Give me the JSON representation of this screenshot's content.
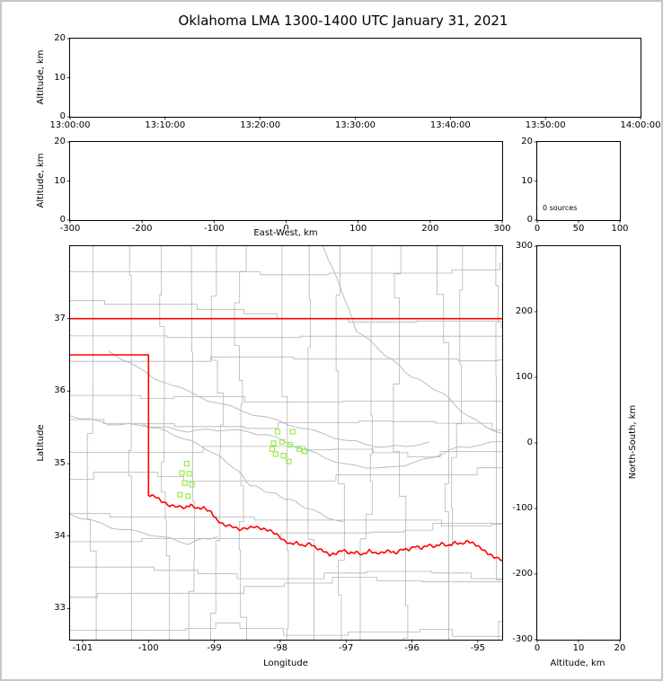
{
  "title": "Oklahoma LMA 1300-1400 UTC January 31, 2021",
  "colors": {
    "axes": "#000000",
    "figure_frame": "#c6c6c6",
    "county_lines": "#b5b5b5",
    "river_lines": "#b5b5b5",
    "state_border": "#ff0000",
    "source_marker": "#97ef4a"
  },
  "chart_data": [
    {
      "id": "time_altitude",
      "type": "scatter",
      "ylabel": "Altitude, km",
      "ylim": [
        0,
        20
      ],
      "yticks": [
        0,
        10,
        20
      ],
      "xtick_labels": [
        "13:00:00",
        "13:10:00",
        "13:20:00",
        "13:30:00",
        "13:40:00",
        "13:50:00",
        "14:00:00"
      ],
      "points": []
    },
    {
      "id": "eastwest_altitude",
      "type": "scatter",
      "xlabel": "East-West, km",
      "ylabel": "Altitude, km",
      "xlim": [
        -300,
        300
      ],
      "xticks": [
        -300,
        -200,
        -100,
        0,
        100,
        200,
        300
      ],
      "ylim": [
        0,
        20
      ],
      "yticks": [
        0,
        10,
        20
      ],
      "points": []
    },
    {
      "id": "altitude_histogram",
      "type": "bar",
      "annotation": "0 sources",
      "xlim": [
        0,
        100
      ],
      "xticks": [
        0,
        50,
        100
      ],
      "ylim": [
        0,
        20
      ],
      "yticks": [
        0,
        10,
        20
      ],
      "values": []
    },
    {
      "id": "plan_view_map",
      "type": "scatter",
      "xlabel": "Longitude",
      "ylabel": "Latitude",
      "xlim": [
        -101.19,
        -94.63
      ],
      "xticks": [
        -101,
        -100,
        -99,
        -98,
        -97,
        -96,
        -95
      ],
      "ylim": [
        32.57,
        38.0
      ],
      "yticks": [
        33,
        34,
        35,
        36,
        37
      ],
      "points": [
        [
          -98.04,
          35.44
        ],
        [
          -97.81,
          35.44
        ],
        [
          -98.1,
          35.28
        ],
        [
          -97.97,
          35.3
        ],
        [
          -97.85,
          35.26
        ],
        [
          -98.12,
          35.2
        ],
        [
          -98.07,
          35.13
        ],
        [
          -97.95,
          35.11
        ],
        [
          -97.87,
          35.03
        ],
        [
          -97.71,
          35.2
        ],
        [
          -97.63,
          35.17
        ],
        [
          -99.42,
          35.0
        ],
        [
          -99.49,
          34.87
        ],
        [
          -99.38,
          34.86
        ],
        [
          -99.45,
          34.73
        ],
        [
          -99.34,
          34.71
        ],
        [
          -99.52,
          34.57
        ],
        [
          -99.4,
          34.55
        ]
      ],
      "state_border": {
        "north_lat": 37.0,
        "panhandle_south_lat": 36.5,
        "west_lon": -100.0,
        "west_border_south_lat": 34.56
      },
      "red_river": [
        [
          -100.0,
          34.56
        ],
        [
          -99.9,
          34.55
        ],
        [
          -99.8,
          34.48
        ],
        [
          -99.68,
          34.42
        ],
        [
          -99.56,
          34.41
        ],
        [
          -99.44,
          34.39
        ],
        [
          -99.36,
          34.43
        ],
        [
          -99.26,
          34.38
        ],
        [
          -99.16,
          34.39
        ],
        [
          -99.05,
          34.33
        ],
        [
          -98.96,
          34.22
        ],
        [
          -98.85,
          34.15
        ],
        [
          -98.74,
          34.14
        ],
        [
          -98.62,
          34.09
        ],
        [
          -98.5,
          34.11
        ],
        [
          -98.39,
          34.13
        ],
        [
          -98.28,
          34.1
        ],
        [
          -98.17,
          34.08
        ],
        [
          -98.06,
          34.03
        ],
        [
          -97.95,
          33.94
        ],
        [
          -97.85,
          33.89
        ],
        [
          -97.75,
          33.91
        ],
        [
          -97.65,
          33.86
        ],
        [
          -97.55,
          33.9
        ],
        [
          -97.45,
          33.83
        ],
        [
          -97.35,
          33.8
        ],
        [
          -97.25,
          33.74
        ],
        [
          -97.15,
          33.76
        ],
        [
          -97.05,
          33.81
        ],
        [
          -96.95,
          33.76
        ],
        [
          -96.85,
          33.78
        ],
        [
          -96.75,
          33.74
        ],
        [
          -96.65,
          33.8
        ],
        [
          -96.55,
          33.76
        ],
        [
          -96.45,
          33.77
        ],
        [
          -96.35,
          33.8
        ],
        [
          -96.25,
          33.76
        ],
        [
          -96.15,
          33.82
        ],
        [
          -96.05,
          33.81
        ],
        [
          -95.95,
          33.86
        ],
        [
          -95.85,
          33.83
        ],
        [
          -95.75,
          33.88
        ],
        [
          -95.65,
          33.85
        ],
        [
          -95.55,
          33.9
        ],
        [
          -95.45,
          33.86
        ],
        [
          -95.35,
          33.91
        ],
        [
          -95.25,
          33.89
        ],
        [
          -95.15,
          33.93
        ],
        [
          -95.05,
          33.89
        ],
        [
          -94.95,
          33.83
        ],
        [
          -94.85,
          33.76
        ],
        [
          -94.75,
          33.71
        ],
        [
          -94.63,
          33.67
        ]
      ],
      "rivers": [
        [
          [
            -101.19,
            35.66
          ],
          [
            -100.6,
            35.55
          ],
          [
            -100.0,
            35.52
          ],
          [
            -99.4,
            35.45
          ],
          [
            -98.8,
            35.47
          ],
          [
            -98.2,
            35.4
          ],
          [
            -97.6,
            35.18
          ],
          [
            -97.0,
            34.98
          ],
          [
            -96.4,
            34.93
          ],
          [
            -95.8,
            35.05
          ],
          [
            -95.3,
            35.22
          ],
          [
            -94.63,
            35.3
          ]
        ],
        [
          [
            -97.35,
            38.0
          ],
          [
            -97.05,
            37.35
          ],
          [
            -96.85,
            36.85
          ],
          [
            -96.4,
            36.5
          ],
          [
            -96.0,
            36.2
          ],
          [
            -95.55,
            35.98
          ],
          [
            -95.15,
            35.65
          ],
          [
            -94.63,
            35.4
          ]
        ],
        [
          [
            -100.6,
            36.55
          ],
          [
            -99.9,
            36.18
          ],
          [
            -99.1,
            35.88
          ],
          [
            -98.4,
            35.68
          ],
          [
            -97.7,
            35.5
          ],
          [
            -97.0,
            35.32
          ],
          [
            -96.4,
            35.22
          ],
          [
            -95.75,
            35.28
          ]
        ],
        [
          [
            -101.19,
            34.3
          ],
          [
            -100.55,
            34.12
          ],
          [
            -99.95,
            34.02
          ],
          [
            -99.4,
            33.9
          ],
          [
            -98.95,
            34.0
          ]
        ],
        [
          [
            -100.1,
            35.55
          ],
          [
            -99.6,
            35.4
          ],
          [
            -99.1,
            35.2
          ],
          [
            -98.7,
            34.95
          ],
          [
            -98.45,
            34.7
          ],
          [
            -98.15,
            34.6
          ],
          [
            -97.85,
            34.5
          ],
          [
            -97.5,
            34.35
          ],
          [
            -97.05,
            34.18
          ]
        ]
      ]
    },
    {
      "id": "northsouth_altitude",
      "type": "scatter",
      "xlabel": "Altitude, km",
      "ylabel": "North-South, km",
      "xlim": [
        0,
        20
      ],
      "xticks": [
        0,
        10,
        20
      ],
      "ylim": [
        -300,
        300
      ],
      "yticks": [
        -300,
        -200,
        -100,
        0,
        100,
        200,
        300
      ],
      "points": []
    }
  ]
}
